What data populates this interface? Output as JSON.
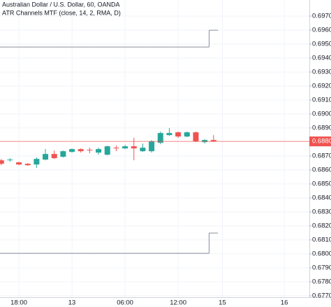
{
  "chart_data": {
    "type": "candlestick",
    "title": "Australian Dollar / U.S. Dollar, 60, OANDA",
    "subtitle": "ATR Channels MTF (close, 14, 2, RMA, D)",
    "categories": [
      null,
      null,
      "18:00",
      null,
      null,
      null,
      null,
      null,
      "13",
      null,
      null,
      null,
      null,
      null,
      "06:00",
      null,
      null,
      null,
      null,
      null,
      "12:00",
      null,
      null,
      null,
      null,
      "15",
      null,
      null,
      null,
      null,
      null,
      null,
      "16",
      null,
      null
    ],
    "open": [
      0.68669,
      0.68669,
      0.68654,
      0.68644,
      0.68639,
      0.68674,
      0.68714,
      0.68694,
      0.68729,
      0.68749,
      0.68744,
      0.68724,
      0.68709,
      0.68759,
      0.68754,
      0.68769,
      0.68734,
      0.68734,
      0.68794,
      0.68849,
      0.68869,
      0.68839,
      0.68869,
      0.68799,
      0.68814,
      null,
      null,
      null,
      null,
      null,
      null,
      null,
      null,
      null,
      null
    ],
    "high": [
      0.68679,
      0.68684,
      0.68659,
      0.68649,
      0.68689,
      0.68749,
      0.68739,
      0.68739,
      0.68754,
      0.68754,
      0.68759,
      0.68759,
      0.68774,
      0.68774,
      0.68779,
      0.68829,
      0.68789,
      0.68814,
      0.68874,
      0.68899,
      0.68874,
      0.68874,
      0.68874,
      0.68819,
      0.68849,
      null,
      null,
      null,
      null,
      null,
      null,
      null,
      null,
      null,
      null
    ],
    "low": [
      0.68634,
      0.68659,
      0.68634,
      0.68629,
      0.68614,
      0.68669,
      0.68679,
      0.68689,
      0.68724,
      0.68724,
      0.68719,
      0.68709,
      0.68704,
      0.68734,
      0.68749,
      0.68669,
      0.68729,
      0.68724,
      0.68784,
      0.68844,
      0.68829,
      0.68834,
      0.68799,
      0.68789,
      0.68799,
      null,
      null,
      null,
      null,
      null,
      null,
      null,
      null,
      null,
      null
    ],
    "close": [
      0.68644,
      0.68674,
      0.68639,
      0.68634,
      0.68679,
      0.68714,
      0.68684,
      0.68734,
      0.68749,
      0.68734,
      0.68739,
      0.68749,
      0.68769,
      0.68754,
      0.68769,
      0.68754,
      0.68759,
      0.68804,
      0.68864,
      0.68864,
      0.68839,
      0.68869,
      0.68804,
      0.68814,
      0.68804,
      null,
      null,
      null,
      null,
      null,
      null,
      null,
      null,
      null,
      null
    ],
    "up_color": "#26a69a",
    "down_color": "#ef5350",
    "channels": [
      {
        "color": "#8a8e99",
        "values": [
          0.69479,
          0.69479,
          0.69479,
          0.69479,
          0.69479,
          0.69479,
          0.69479,
          0.69479,
          0.69479,
          0.69479,
          0.69479,
          0.69479,
          0.69479,
          0.69479,
          0.69479,
          0.69479,
          0.69479,
          0.69479,
          0.69479,
          0.69479,
          0.69479,
          0.69479,
          0.69479,
          0.69479,
          0.69599,
          null,
          null,
          null,
          null,
          null,
          null,
          null,
          null,
          null,
          null
        ]
      },
      {
        "color": "#8a8e99",
        "values": [
          0.68004,
          0.68004,
          0.68004,
          0.68004,
          0.68004,
          0.68004,
          0.68004,
          0.68004,
          0.68004,
          0.68004,
          0.68004,
          0.68004,
          0.68004,
          0.68004,
          0.68004,
          0.68004,
          0.68004,
          0.68004,
          0.68004,
          0.68004,
          0.68004,
          0.68004,
          0.68004,
          0.68004,
          0.68149,
          null,
          null,
          null,
          null,
          null,
          null,
          null,
          null,
          null,
          null
        ]
      }
    ],
    "last_price": {
      "value": 0.68804,
      "label": "0.68804",
      "color": "#ef5350"
    },
    "ylim": [
      0.6769,
      0.69815
    ],
    "yticks": [
      {
        "value": 0.677,
        "label": "0.67700"
      },
      {
        "value": 0.678,
        "label": "0.67800"
      },
      {
        "value": 0.679,
        "label": "0.67900"
      },
      {
        "value": 0.68,
        "label": "0.68000"
      },
      {
        "value": 0.681,
        "label": "0.68100"
      },
      {
        "value": 0.682,
        "label": "0.68200"
      },
      {
        "value": 0.683,
        "label": "0.68300"
      },
      {
        "value": 0.684,
        "label": "0.68400"
      },
      {
        "value": 0.685,
        "label": "0.68500"
      },
      {
        "value": 0.686,
        "label": "0.68600"
      },
      {
        "value": 0.687,
        "label": "0.68700"
      },
      {
        "value": 0.689,
        "label": "0.68900"
      },
      {
        "value": 0.69,
        "label": "0.69000"
      },
      {
        "value": 0.691,
        "label": "0.69100"
      },
      {
        "value": 0.692,
        "label": "0.69200"
      },
      {
        "value": 0.693,
        "label": "0.69300"
      },
      {
        "value": 0.694,
        "label": "0.69400"
      },
      {
        "value": 0.695,
        "label": "0.69500"
      },
      {
        "value": 0.696,
        "label": "0.69600"
      },
      {
        "value": 0.697,
        "label": "0.69700"
      }
    ],
    "grid": true
  }
}
